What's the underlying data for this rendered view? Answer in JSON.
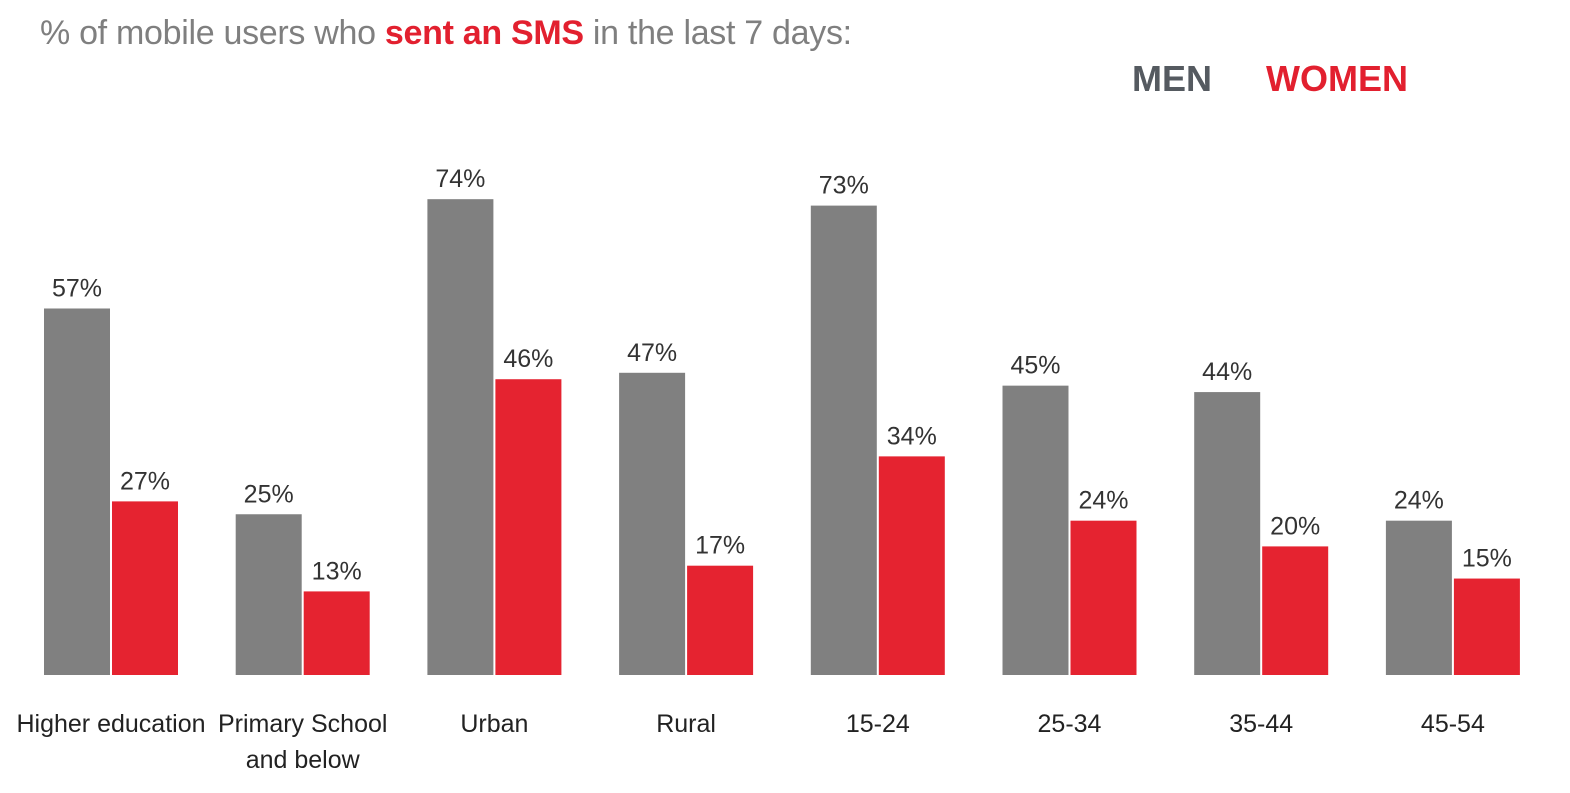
{
  "title": {
    "prefix": "% of mobile users who",
    "highlight": "sent an SMS",
    "suffix": "in the last 7 days:"
  },
  "legend": {
    "men": "MEN",
    "women": "WOMEN"
  },
  "colors": {
    "men": "#808080",
    "women": "#e52330",
    "highlight": "#e2202f",
    "men_legend": "#555a60"
  },
  "chart_data": {
    "type": "bar",
    "categories": [
      [
        "Higher education"
      ],
      [
        "Primary School",
        "and below"
      ],
      [
        "Urban"
      ],
      [
        "Rural"
      ],
      [
        "15-24"
      ],
      [
        "25-34"
      ],
      [
        "35-44"
      ],
      [
        "45-54"
      ]
    ],
    "series": [
      {
        "name": "MEN",
        "values": [
          57,
          25,
          74,
          47,
          73,
          45,
          44,
          24
        ],
        "labels": [
          "57%",
          "25%",
          "74%",
          "47%",
          "73%",
          "45%",
          "44%",
          "24%"
        ]
      },
      {
        "name": "WOMEN",
        "values": [
          27,
          13,
          46,
          17,
          34,
          24,
          20,
          15
        ],
        "labels": [
          "27%",
          "13%",
          "46%",
          "17%",
          "34%",
          "24%",
          "20%",
          "15%"
        ]
      }
    ],
    "ylim": [
      0,
      100
    ],
    "grid": false,
    "legend_position": "top-right"
  }
}
